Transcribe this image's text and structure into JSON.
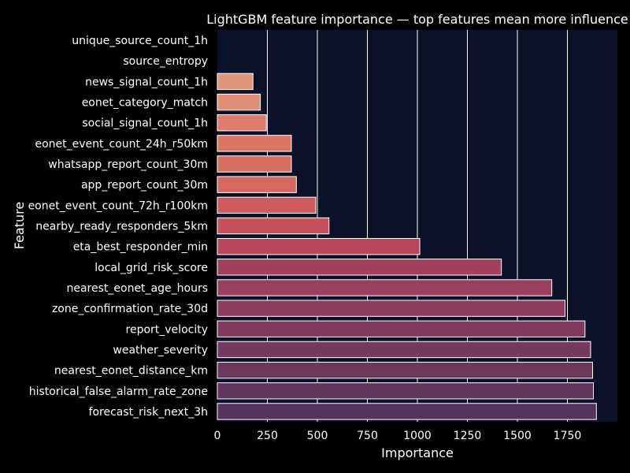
{
  "chart_data": {
    "type": "bar",
    "orientation": "horizontal",
    "title": "LightGBM feature importance — top features mean more influence",
    "xlabel": "Importance",
    "ylabel": "Feature",
    "xlim": [
      0,
      2000
    ],
    "xticks": [
      0,
      250,
      500,
      750,
      1000,
      1250,
      1500,
      1750
    ],
    "grid": "vertical",
    "categories": [
      "unique_source_count_1h",
      "source_entropy",
      "news_signal_count_1h",
      "eonet_category_match",
      "social_signal_count_1h",
      "eonet_event_count_24h_r50km",
      "whatsapp_report_count_30m",
      "app_report_count_30m",
      "eonet_event_count_72h_r100km",
      "nearby_ready_responders_5km",
      "eta_best_responder_min",
      "local_grid_risk_score",
      "nearest_eonet_age_hours",
      "zone_confirmation_rate_30d",
      "report_velocity",
      "weather_severity",
      "nearest_eonet_distance_km",
      "historical_false_alarm_rate_zone",
      "forecast_risk_next_3h"
    ],
    "values": [
      0,
      0,
      178,
      215,
      245,
      370,
      370,
      395,
      492,
      558,
      1012,
      1420,
      1672,
      1738,
      1838,
      1866,
      1876,
      1880,
      1895
    ],
    "colors": [
      "#e8a082",
      "#e49a7d",
      "#e0947a",
      "#df9076",
      "#dc7e6a",
      "#da7764",
      "#d87062",
      "#d6695f",
      "#cf5b5d",
      "#c9515d",
      "#b8475d",
      "#a3415d",
      "#9a3f5e",
      "#8e3b5e",
      "#823a5e",
      "#753a5e",
      "#6b385e",
      "#5f365e",
      "#55335c"
    ],
    "background": "#0a1128",
    "page_background": "#000000"
  }
}
